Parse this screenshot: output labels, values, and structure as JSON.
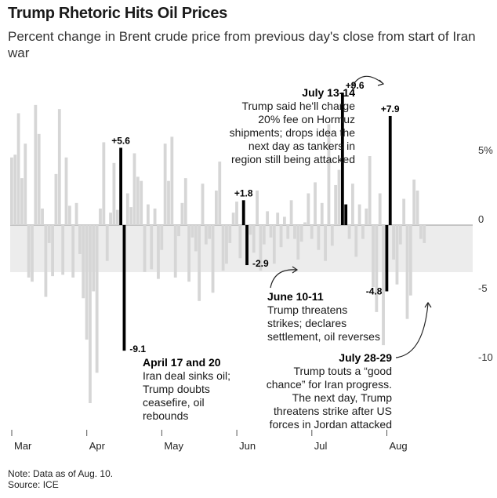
{
  "title": "Trump Rhetoric Hits Oil Prices",
  "subtitle": "Percent change in Brent crude price from previous day's close from start of Iran war",
  "footer": {
    "note": "Note: Data as of Aug. 10.",
    "source": "Source: ICE"
  },
  "colors": {
    "bar": "#d6d6d6",
    "highlight": "#000000",
    "band": "#ececec",
    "text": "#1a1a1a"
  },
  "chart_data": {
    "type": "bar",
    "ylim": [
      -13.5,
      8.5
    ],
    "y_ticks": [
      {
        "value": 5,
        "label": "5%"
      },
      {
        "value": 0,
        "label": "0"
      },
      {
        "value": -5,
        "label": "-5"
      },
      {
        "value": -10,
        "label": "-10"
      }
    ],
    "x_ticks": [
      "Mar",
      "Apr",
      "May",
      "Jun",
      "Jul",
      "Aug"
    ],
    "x_tick_positions": [
      0,
      22,
      44,
      66,
      88,
      110
    ],
    "values": [
      4.9,
      5.1,
      8.1,
      3.4,
      5.9,
      -3.8,
      -4.1,
      8.7,
      6.6,
      1.2,
      -5.2,
      -1.3,
      -3.7,
      3.7,
      8.4,
      -3.6,
      4.9,
      1.4,
      -3.8,
      1.6,
      -2.1,
      -5.3,
      -8.3,
      -12.9,
      -4.8,
      -10.7,
      1.2,
      6.0,
      -2.6,
      0.9,
      4.5,
      1.1,
      5.6,
      -9.1,
      2.3,
      1.3,
      5.2,
      3.5,
      3.2,
      -3.4,
      1.5,
      -3.2,
      1.2,
      -3.9,
      -1.8,
      5.9,
      3.2,
      6.4,
      -3.8,
      -0.8,
      1.6,
      3.4,
      -4.1,
      -0.9,
      -1.9,
      -5.5,
      3.0,
      -1.4,
      -1.0,
      -4.9,
      2.5,
      4.6,
      -3.3,
      -2.8,
      -1.3,
      0.9,
      1.7,
      -2.4,
      1.8,
      -2.9,
      -0.7,
      -2.0,
      2.5,
      -3.3,
      -1.4,
      1.0,
      -0.9,
      -2.8,
      0.9,
      -1.6,
      0.6,
      -1.0,
      1.8,
      -1.0,
      -2.5,
      -1.2,
      0.2,
      2.3,
      -1.0,
      3.1,
      -1.8,
      1.6,
      -2.6,
      7.3,
      -1.5,
      2.9,
      4.0,
      9.6,
      1.5,
      -1.0,
      3.0,
      -2.3,
      1.5,
      -1.0,
      1.2,
      5.0,
      -4.5,
      -6.3,
      2.3,
      -8.7,
      -4.8,
      7.9,
      -2.5,
      -4.3,
      -1.4,
      1.9,
      -6.8,
      -5.1,
      3.3,
      2.5,
      -1.0,
      -1.3
    ],
    "highlighted": [
      {
        "index": 32,
        "value": 5.6,
        "label": "+5.6"
      },
      {
        "index": 33,
        "value": -9.1,
        "label": "-9.1"
      },
      {
        "index": 68,
        "value": 1.8,
        "label": "+1.8"
      },
      {
        "index": 69,
        "value": -2.9,
        "label": "-2.9"
      },
      {
        "index": 97,
        "value": 9.6,
        "label": "+9.6"
      },
      {
        "index": 98,
        "value": 1.5,
        "label": ""
      },
      {
        "index": 110,
        "value": -4.8,
        "label": "-4.8"
      },
      {
        "index": 111,
        "value": 7.9,
        "label": "+7.9"
      }
    ],
    "annotations": [
      {
        "heading": "July 13-14",
        "lines": [
          "Trump said he'll charge",
          "20% fee on Hormuz",
          "shipments; drops idea the",
          "next day as tankers in",
          "region still being attacked"
        ]
      },
      {
        "heading": "April 17 and 20",
        "lines": [
          "Iran deal sinks oil;",
          "Trump doubts",
          "ceasefire, oil",
          "rebounds"
        ]
      },
      {
        "heading": "June 10-11",
        "lines": [
          "Trump threatens",
          "strikes; declares",
          "settlement, oil reverses"
        ]
      },
      {
        "heading": "July 28-29",
        "lines": [
          "Trump touts a “good",
          "chance” for Iran progress.",
          "The next day, Trump",
          "threatens strike after US",
          "forces in Jordan attacked"
        ]
      }
    ]
  }
}
